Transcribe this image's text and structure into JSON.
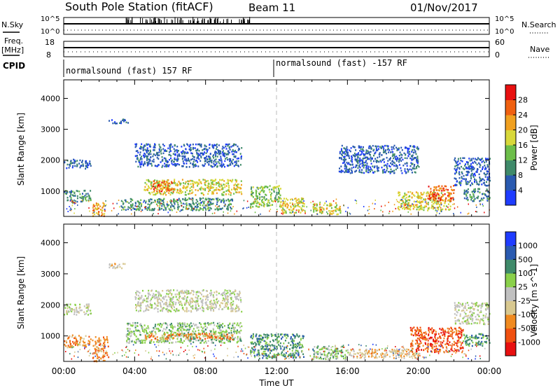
{
  "header": {
    "station": "South Pole Station (fitACF)",
    "beam": "Beam 11",
    "date": "01/Nov/2017"
  },
  "strip": {
    "nsky_label": "N.Sky",
    "nsky_top": "10^5",
    "nsky_bottom": "10^0",
    "nsearch_label": "N.Search",
    "nsearch_top": "10^5",
    "nsearch_bottom": "10^0",
    "freq_label_1": "Freq.",
    "freq_label_2": "[MHz]",
    "freq_top": "18",
    "freq_bottom": "8",
    "nave_label": "Nave",
    "nave_top": "60",
    "nave_bottom": "0",
    "cpid_label": "CPID",
    "cpid_1": "normalsound (fast) 157 RF",
    "cpid_2": "normalsound (fast) -157 RF"
  },
  "colors": {
    "power": [
      "#1f3cff",
      "#2a5ab0",
      "#3f8a6a",
      "#6dbe4a",
      "#d8d83a",
      "#f0a020",
      "#f06010",
      "#e81010"
    ],
    "velocity": [
      "#e81010",
      "#f05010",
      "#f08a20",
      "#d8c890",
      "#c0c0c0",
      "#8ad04a",
      "#3f8a6a",
      "#2a5ab0",
      "#1f3cff"
    ]
  },
  "chart_data": [
    {
      "type": "heatmap",
      "title": "",
      "xlabel": "",
      "ylabel": "Slant Range [km]",
      "xlim": [
        "00:00",
        "00:00"
      ],
      "ylim": [
        180,
        4600
      ],
      "y_ticks": [
        "1000",
        "2000",
        "3000",
        "4000"
      ],
      "colorbar_label": "Power [dB]",
      "colorbar_ticks": [
        "4",
        "8",
        "12",
        "16",
        "20",
        "24",
        "28"
      ],
      "regions": [
        {
          "t0": 0.0,
          "t1": 1.5,
          "r0": 1750,
          "r1": 2050,
          "level": 1
        },
        {
          "t0": 0.0,
          "t1": 1.5,
          "r0": 650,
          "r1": 1050,
          "level": 2
        },
        {
          "t0": 1.6,
          "t1": 2.3,
          "r0": 200,
          "r1": 650,
          "level": 5
        },
        {
          "t0": 2.5,
          "t1": 3.6,
          "r0": 3200,
          "r1": 3350,
          "level": 1
        },
        {
          "t0": 4.0,
          "t1": 10.0,
          "r0": 1800,
          "r1": 2550,
          "level": 1
        },
        {
          "t0": 3.2,
          "t1": 9.5,
          "r0": 400,
          "r1": 800,
          "level": 2
        },
        {
          "t0": 4.5,
          "t1": 10.0,
          "r0": 900,
          "r1": 1400,
          "level": 4
        },
        {
          "t0": 5.0,
          "t1": 6.2,
          "r0": 1000,
          "r1": 1350,
          "level": 6
        },
        {
          "t0": 10.5,
          "t1": 12.2,
          "r0": 500,
          "r1": 1200,
          "level": 3
        },
        {
          "t0": 12.2,
          "t1": 13.6,
          "r0": 300,
          "r1": 800,
          "level": 4
        },
        {
          "t0": 14.0,
          "t1": 15.6,
          "r0": 250,
          "r1": 650,
          "level": 4
        },
        {
          "t0": 15.5,
          "t1": 20.0,
          "r0": 1600,
          "r1": 2500,
          "level": 1
        },
        {
          "t0": 18.8,
          "t1": 21.8,
          "r0": 400,
          "r1": 1000,
          "level": 4
        },
        {
          "t0": 20.5,
          "t1": 22.0,
          "r0": 700,
          "r1": 1200,
          "level": 6
        },
        {
          "t0": 22.0,
          "t1": 24.0,
          "r0": 1200,
          "r1": 2100,
          "level": 1
        },
        {
          "t0": 22.5,
          "t1": 24.0,
          "r0": 700,
          "r1": 1100,
          "level": 2
        }
      ]
    },
    {
      "type": "heatmap",
      "title": "",
      "xlabel": "Time UT",
      "ylabel": "Slant Range [km]",
      "x_ticks": [
        "00:00",
        "04:00",
        "08:00",
        "12:00",
        "16:00",
        "20:00",
        "00:00"
      ],
      "ylim": [
        180,
        4600
      ],
      "y_ticks": [
        "1000",
        "2000",
        "3000",
        "4000"
      ],
      "colorbar_label": "Velocity [m s^-1]",
      "colorbar_ticks": [
        "1000",
        "500",
        "100",
        "25",
        "-25",
        "-100",
        "-500",
        "-1000"
      ],
      "regions": [
        {
          "t0": 0.0,
          "t1": 1.5,
          "r0": 1700,
          "r1": 2050,
          "level": 4
        },
        {
          "t0": 0.0,
          "t1": 1.5,
          "r0": 650,
          "r1": 1050,
          "level": 2
        },
        {
          "t0": 1.6,
          "t1": 2.5,
          "r0": 200,
          "r1": 1000,
          "level": 2
        },
        {
          "t0": 2.5,
          "t1": 3.5,
          "r0": 3200,
          "r1": 3350,
          "level": 3
        },
        {
          "t0": 4.0,
          "t1": 10.0,
          "r0": 1800,
          "r1": 2500,
          "level": 4
        },
        {
          "t0": 3.5,
          "t1": 10.0,
          "r0": 800,
          "r1": 1450,
          "level": 5
        },
        {
          "t0": 4.5,
          "t1": 9.5,
          "r0": 900,
          "r1": 1100,
          "level": 2
        },
        {
          "t0": 10.5,
          "t1": 13.5,
          "r0": 300,
          "r1": 1100,
          "level": 6
        },
        {
          "t0": 14.0,
          "t1": 16.0,
          "r0": 250,
          "r1": 700,
          "level": 5
        },
        {
          "t0": 16.0,
          "t1": 20.0,
          "r0": 300,
          "r1": 600,
          "level": 3
        },
        {
          "t0": 19.5,
          "t1": 22.5,
          "r0": 500,
          "r1": 1300,
          "level": 1
        },
        {
          "t0": 22.0,
          "t1": 24.0,
          "r0": 1400,
          "r1": 2100,
          "level": 4
        },
        {
          "t0": 22.5,
          "t1": 24.0,
          "r0": 700,
          "r1": 1100,
          "level": 6
        }
      ]
    }
  ]
}
